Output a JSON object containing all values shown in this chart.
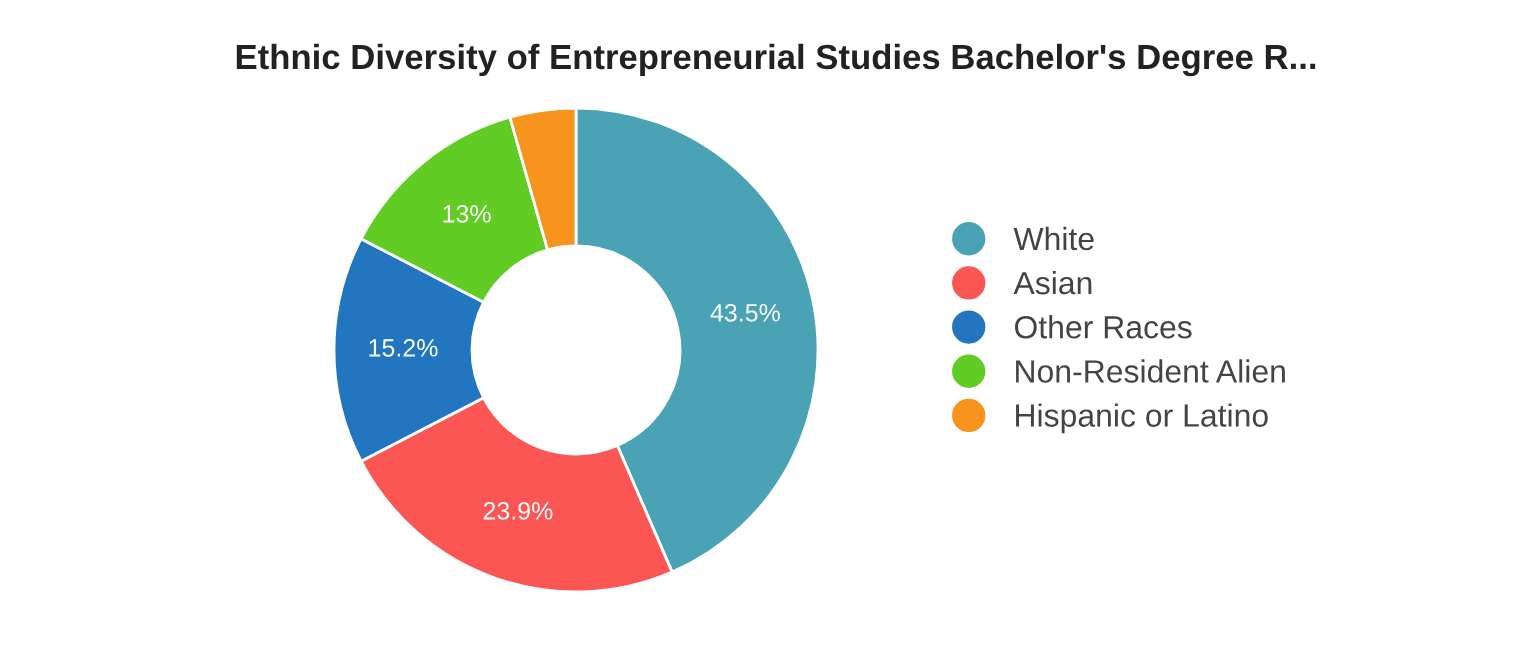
{
  "chart_data": {
    "type": "donut",
    "title": "Ethnic Diversity of Entrepreneurial Studies Bachelor's Degree R...",
    "categories": [
      "White",
      "Asian",
      "Other Races",
      "Non-Resident Alien",
      "Hispanic or Latino"
    ],
    "values": [
      43.5,
      23.9,
      15.2,
      13,
      4.4
    ],
    "value_labels": [
      "43.5%",
      "23.9%",
      "15.2%",
      "13%",
      null
    ],
    "colors": [
      "#4aa3b5",
      "#fc5654",
      "#2275bf",
      "#61cc24",
      "#f7941d"
    ],
    "legend": "right"
  }
}
